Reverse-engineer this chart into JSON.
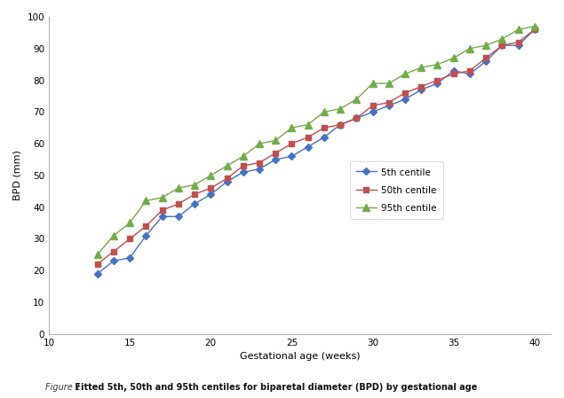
{
  "weeks": [
    13,
    14,
    15,
    16,
    17,
    18,
    19,
    20,
    21,
    22,
    23,
    24,
    25,
    26,
    27,
    28,
    29,
    30,
    31,
    32,
    33,
    34,
    35,
    36,
    37,
    38,
    39,
    40
  ],
  "p5": [
    19,
    23,
    24,
    31,
    37,
    37,
    41,
    44,
    48,
    51,
    52,
    55,
    56,
    59,
    62,
    66,
    68,
    70,
    72,
    74,
    77,
    79,
    83,
    82,
    86,
    91,
    91,
    96
  ],
  "p50": [
    22,
    26,
    30,
    34,
    39,
    41,
    44,
    46,
    49,
    53,
    54,
    57,
    60,
    62,
    65,
    66,
    68,
    72,
    73,
    76,
    78,
    80,
    82,
    83,
    87,
    91,
    92,
    96
  ],
  "p95": [
    25,
    31,
    35,
    42,
    43,
    46,
    47,
    50,
    53,
    56,
    60,
    61,
    65,
    66,
    70,
    71,
    74,
    79,
    79,
    82,
    84,
    85,
    87,
    90,
    91,
    93,
    96,
    97
  ],
  "color_p5": "#4472c4",
  "color_p50": "#c0504d",
  "color_p95": "#70ad47",
  "xlabel": "Gestational age (weeks)",
  "ylabel": "BPD (mm)",
  "xlim": [
    10,
    41
  ],
  "ylim": [
    0,
    100
  ],
  "xticks": [
    10,
    15,
    20,
    25,
    30,
    35,
    40
  ],
  "yticks": [
    0,
    10,
    20,
    30,
    40,
    50,
    60,
    70,
    80,
    90,
    100
  ],
  "legend_labels": [
    "5th centile",
    "50th centile",
    "95th centile"
  ],
  "caption_italic": "Figure 1",
  "caption_bold": " Fitted 5th, 50th and 95th centiles for biparetal diameter (BPD) by gestational age"
}
